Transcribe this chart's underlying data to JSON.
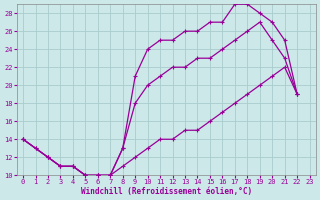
{
  "xlabel": "Windchill (Refroidissement éolien,°C)",
  "bg_color": "#cce8e8",
  "line_color": "#990099",
  "grid_color": "#aacccc",
  "xlim": [
    -0.5,
    23.5
  ],
  "ylim": [
    10,
    29
  ],
  "xticks": [
    0,
    1,
    2,
    3,
    4,
    5,
    6,
    7,
    8,
    9,
    10,
    11,
    12,
    13,
    14,
    15,
    16,
    17,
    18,
    19,
    20,
    21,
    22,
    23
  ],
  "yticks": [
    10,
    12,
    14,
    16,
    18,
    20,
    22,
    24,
    26,
    28
  ],
  "curve1_x": [
    0,
    1,
    2,
    3,
    4,
    5,
    6,
    7,
    8,
    9,
    10,
    11,
    12,
    13,
    14,
    15,
    16,
    17,
    18,
    19,
    20,
    21,
    22
  ],
  "curve1_y": [
    14,
    13,
    12,
    11,
    11,
    10,
    10,
    10,
    13,
    21,
    24,
    25,
    25,
    26,
    26,
    27,
    27,
    29,
    29,
    28,
    27,
    25,
    19
  ],
  "curve2_x": [
    0,
    2,
    3,
    4,
    5,
    6,
    7,
    8,
    9,
    10,
    11,
    12,
    13,
    14,
    15,
    16,
    17,
    18,
    19,
    20,
    21,
    22
  ],
  "curve2_y": [
    14,
    12,
    11,
    11,
    10,
    10,
    10,
    13,
    18,
    20,
    21,
    22,
    22,
    23,
    23,
    24,
    25,
    26,
    27,
    25,
    23,
    19
  ],
  "curve3_x": [
    0,
    1,
    2,
    3,
    4,
    5,
    6,
    7,
    8,
    9,
    10,
    11,
    12,
    13,
    14,
    15,
    16,
    17,
    18,
    19,
    20,
    21,
    22
  ],
  "curve3_y": [
    14,
    13,
    12,
    11,
    11,
    10,
    10,
    10,
    11,
    12,
    13,
    14,
    14,
    15,
    15,
    16,
    17,
    18,
    19,
    20,
    21,
    22,
    19
  ]
}
